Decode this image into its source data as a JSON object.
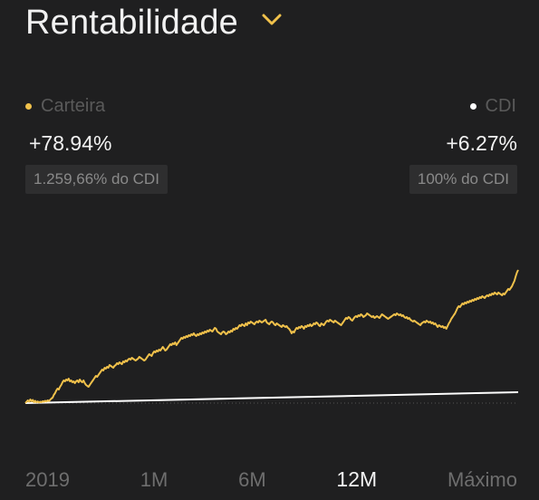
{
  "header": {
    "title": "Rentabilidade"
  },
  "legend": {
    "portfolio": {
      "label": "Carteira",
      "value": "+78.94%",
      "badge": "1.259,66% do CDI",
      "color": "#f0c14b"
    },
    "benchmark": {
      "label": "CDI",
      "value": "+6.27%",
      "badge": "100% do CDI",
      "color": "#ffffff"
    }
  },
  "periods": {
    "selected": "12M",
    "items": [
      "2019",
      "1M",
      "6M",
      "12M",
      "Máximo"
    ]
  },
  "chart_data": {
    "type": "line",
    "series": [
      {
        "name": "Carteira",
        "color": "#f0c14b",
        "values": [
          0,
          1.5,
          3,
          1.5,
          4,
          2,
          3.5,
          1,
          2.5,
          0.8,
          1.8,
          0.6,
          1.5,
          1,
          2,
          1.5,
          2.5,
          1.8,
          3,
          2.2,
          3.5,
          5,
          6,
          9,
          11,
          14,
          16,
          15,
          18,
          20,
          23,
          25,
          24,
          26,
          25,
          27,
          24,
          25,
          23,
          24,
          22,
          24,
          25,
          23,
          26,
          24,
          23,
          25,
          22,
          20,
          19,
          18,
          20,
          22,
          24,
          26,
          28,
          30,
          29,
          31,
          33,
          35,
          37,
          36,
          39,
          38,
          40,
          39,
          42,
          41,
          40,
          39,
          41,
          42,
          44,
          43,
          45,
          44,
          43,
          46,
          45,
          47,
          46,
          48,
          49,
          48,
          50,
          49,
          48,
          47,
          48,
          49,
          51,
          50,
          49,
          48,
          47,
          48,
          50,
          52,
          54,
          53,
          52,
          55,
          57,
          56,
          58,
          57,
          59,
          58,
          60,
          62,
          60,
          58,
          59,
          61,
          63,
          65,
          64,
          66,
          65,
          67,
          64,
          66,
          68,
          70,
          72,
          71,
          73,
          72,
          74,
          73,
          75,
          74,
          76,
          75,
          77,
          75,
          74,
          76,
          75,
          77,
          76,
          78,
          77,
          79,
          78,
          80,
          79,
          81,
          80,
          79,
          81,
          83,
          82,
          79,
          78,
          77,
          76,
          78,
          79,
          78,
          76,
          77,
          79,
          78,
          80,
          79,
          82,
          81,
          83,
          82,
          84,
          86,
          85,
          87,
          86,
          85,
          88,
          86,
          89,
          88,
          90,
          89,
          88,
          87,
          89,
          90,
          89,
          91,
          90,
          89,
          90,
          91,
          92,
          89,
          88,
          87,
          89,
          90,
          89,
          87,
          86,
          88,
          87,
          86,
          85,
          84,
          86,
          85,
          84,
          85,
          83,
          82,
          80,
          77,
          79,
          78,
          81,
          83,
          82,
          84,
          83,
          85,
          84,
          82,
          85,
          84,
          86,
          85,
          87,
          85,
          86,
          88,
          87,
          89,
          88,
          86,
          85,
          88,
          87,
          86,
          88,
          90,
          91,
          90,
          92,
          91,
          90,
          89,
          91,
          90,
          89,
          88,
          87,
          86,
          88,
          90,
          92,
          94,
          93,
          95,
          94,
          92,
          91,
          93,
          95,
          96,
          95,
          97,
          96,
          98,
          97,
          95,
          96,
          97,
          99,
          98,
          97,
          96,
          95,
          96,
          94,
          95,
          96,
          95,
          94,
          96,
          98,
          97,
          96,
          95,
          94,
          93,
          94,
          95,
          96,
          97,
          98,
          97,
          99,
          98,
          97,
          98,
          96,
          97,
          95,
          94,
          95,
          93,
          94,
          92,
          91,
          90,
          91,
          90,
          89,
          88,
          87,
          86,
          88,
          89,
          90,
          89,
          91,
          90,
          89,
          90,
          88,
          89,
          87,
          88,
          86,
          84,
          86,
          85,
          84,
          85,
          83,
          84,
          82,
          85,
          88,
          90,
          93,
          95,
          97,
          99,
          102,
          105,
          107,
          106,
          108,
          110,
          109,
          111,
          110,
          112,
          111,
          113,
          112,
          114,
          113,
          115,
          114,
          116,
          115,
          117,
          116,
          118,
          117,
          116,
          118,
          119,
          118,
          120,
          119,
          121,
          120,
          122,
          121,
          120,
          122,
          121,
          120,
          119,
          121,
          120,
          122,
          124,
          126,
          125,
          127,
          129,
          132,
          135,
          140,
          144,
          147
        ]
      },
      {
        "name": "CDI",
        "color": "#ffffff",
        "values": "linear"
      }
    ]
  }
}
